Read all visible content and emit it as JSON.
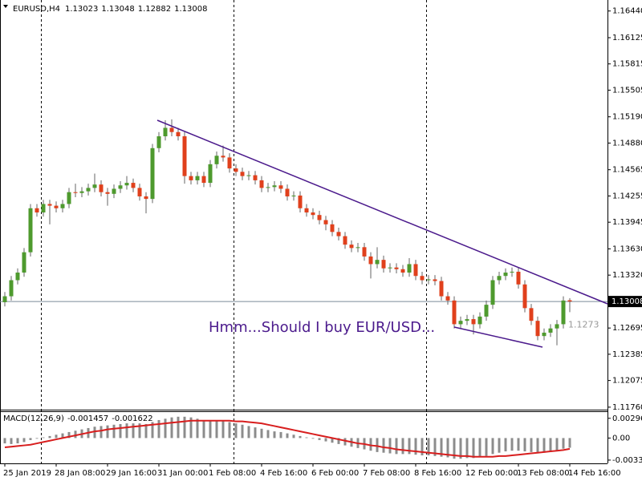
{
  "chart_data": {
    "type": "candlestick",
    "symbol": "EURUSD,H4",
    "header_ohlc": [
      1.13023,
      1.13048,
      1.12882,
      1.13008
    ],
    "annotation": "Hmm...Should I buy EUR/USD...",
    "price_label": 1.1273,
    "up_color": "#4e9a2e",
    "down_color": "#e0401c",
    "wick_color": "#666666",
    "open": [
      1.13,
      1.1307,
      1.1326,
      1.1335,
      1.1359,
      1.1411,
      1.1406,
      1.1416,
      1.1414,
      1.1411,
      1.1416,
      1.143,
      1.1429,
      1.1431,
      1.1435,
      1.1439,
      1.143,
      1.1428,
      1.1434,
      1.1438,
      1.1441,
      1.1435,
      1.1425,
      1.1422,
      1.1482,
      1.1496,
      1.1506,
      1.1501,
      1.1496,
      1.1449,
      1.1444,
      1.1449,
      1.1441,
      1.1463,
      1.1473,
      1.1471,
      1.1458,
      1.1454,
      1.1449,
      1.145,
      1.1444,
      1.1435,
      1.1436,
      1.1438,
      1.1434,
      1.1425,
      1.1426,
      1.1411,
      1.1406,
      1.1403,
      1.1397,
      1.1392,
      1.1383,
      1.1378,
      1.1368,
      1.1364,
      1.1365,
      1.1354,
      1.1345,
      1.135,
      1.134,
      1.1341,
      1.1339,
      1.1335,
      1.1345,
      1.1331,
      1.1326,
      1.1327,
      1.1325,
      1.1307,
      1.1302,
      1.1274,
      1.1278,
      1.128,
      1.1274,
      1.1283,
      1.1297,
      1.1326,
      1.1331,
      1.1335,
      1.1336,
      1.1321,
      1.1293,
      1.1278,
      1.126,
      1.1264,
      1.1269,
      1.1274,
      1.13023
    ],
    "high": [
      1.1312,
      1.1331,
      1.134,
      1.1364,
      1.1416,
      1.1416,
      1.1421,
      1.1421,
      1.1419,
      1.1421,
      1.1435,
      1.144,
      1.1436,
      1.144,
      1.1452,
      1.1444,
      1.1435,
      1.1439,
      1.1443,
      1.1449,
      1.1446,
      1.144,
      1.143,
      1.1487,
      1.1501,
      1.1515,
      1.1516,
      1.1506,
      1.1501,
      1.1454,
      1.1454,
      1.1454,
      1.1468,
      1.1478,
      1.1485,
      1.1476,
      1.1463,
      1.1459,
      1.1455,
      1.1455,
      1.1449,
      1.1441,
      1.1443,
      1.1443,
      1.1439,
      1.1431,
      1.1431,
      1.1416,
      1.1411,
      1.1408,
      1.1402,
      1.1397,
      1.1388,
      1.1383,
      1.1373,
      1.137,
      1.137,
      1.1359,
      1.1365,
      1.1355,
      1.1346,
      1.1346,
      1.1344,
      1.1352,
      1.135,
      1.1336,
      1.1332,
      1.1332,
      1.133,
      1.1312,
      1.1307,
      1.1283,
      1.1285,
      1.1285,
      1.1288,
      1.1302,
      1.1331,
      1.1336,
      1.134,
      1.1341,
      1.1341,
      1.1326,
      1.1298,
      1.1283,
      1.1269,
      1.1274,
      1.1279,
      1.1307,
      1.13048
    ],
    "low": [
      1.1295,
      1.1302,
      1.1321,
      1.133,
      1.1354,
      1.1401,
      1.1401,
      1.1392,
      1.1406,
      1.1406,
      1.1411,
      1.1424,
      1.1424,
      1.1426,
      1.143,
      1.1425,
      1.1414,
      1.1423,
      1.1429,
      1.1433,
      1.143,
      1.142,
      1.1405,
      1.1417,
      1.1477,
      1.1491,
      1.1496,
      1.1491,
      1.144,
      1.1439,
      1.1439,
      1.1436,
      1.1436,
      1.1458,
      1.1466,
      1.1453,
      1.1449,
      1.1444,
      1.1444,
      1.1439,
      1.143,
      1.143,
      1.1431,
      1.1429,
      1.142,
      1.142,
      1.1406,
      1.1401,
      1.1398,
      1.1392,
      1.1385,
      1.1378,
      1.1373,
      1.1363,
      1.1359,
      1.1359,
      1.1349,
      1.1328,
      1.134,
      1.1335,
      1.1335,
      1.1334,
      1.133,
      1.133,
      1.1326,
      1.1321,
      1.1321,
      1.132,
      1.1302,
      1.1297,
      1.1269,
      1.1269,
      1.1273,
      1.1262,
      1.1269,
      1.1278,
      1.1292,
      1.1321,
      1.1326,
      1.133,
      1.1316,
      1.1288,
      1.1273,
      1.1255,
      1.1255,
      1.1259,
      1.1249,
      1.1269,
      1.12882
    ],
    "close": [
      1.1307,
      1.1326,
      1.1335,
      1.1359,
      1.1411,
      1.1406,
      1.1416,
      1.1414,
      1.1411,
      1.1416,
      1.143,
      1.1429,
      1.1431,
      1.1435,
      1.1439,
      1.143,
      1.1428,
      1.1434,
      1.1438,
      1.1441,
      1.1435,
      1.1425,
      1.1422,
      1.1482,
      1.1496,
      1.1506,
      1.1501,
      1.1496,
      1.1449,
      1.1444,
      1.1449,
      1.1441,
      1.1463,
      1.1473,
      1.1471,
      1.1458,
      1.1454,
      1.1449,
      1.145,
      1.1444,
      1.1435,
      1.1436,
      1.1438,
      1.1434,
      1.1425,
      1.1426,
      1.1411,
      1.1406,
      1.1403,
      1.1397,
      1.1392,
      1.1383,
      1.1378,
      1.1368,
      1.1364,
      1.1365,
      1.1354,
      1.1345,
      1.135,
      1.134,
      1.1341,
      1.1339,
      1.1335,
      1.1345,
      1.1331,
      1.1326,
      1.1327,
      1.1325,
      1.1307,
      1.1302,
      1.1274,
      1.1278,
      1.128,
      1.1274,
      1.1283,
      1.1297,
      1.1326,
      1.1331,
      1.1335,
      1.1336,
      1.1321,
      1.1293,
      1.1278,
      1.126,
      1.1264,
      1.1269,
      1.1274,
      1.1302,
      1.13008
    ],
    "ylim": [
      1.1174,
      1.1657
    ],
    "yticks": [
      {
        "value": 1.1644,
        "label": "1.16440"
      },
      1.16125,
      1.15815,
      1.15505,
      {
        "value": 1.1519,
        "label": "1.15190"
      },
      {
        "value": 1.1488,
        "label": "1.14880"
      },
      1.14565,
      1.14255,
      1.13945,
      {
        "value": 1.1363,
        "label": "1.13630"
      },
      {
        "value": 1.1332,
        "label": "1.13320"
      },
      1.12695,
      1.12385,
      1.12075,
      {
        "value": 1.1176,
        "label": "1.11760"
      }
    ],
    "xticks": [
      {
        "value": 0,
        "label": "25 Jan 2019"
      },
      {
        "value": 8,
        "label": "28 Jan 08:00"
      },
      {
        "value": 16,
        "label": "29 Jan 16:00"
      },
      {
        "value": 24,
        "label": "31 Jan 00:00"
      },
      {
        "value": 32,
        "label": "1 Feb 08:00"
      },
      {
        "value": 40,
        "label": "4 Feb 16:00"
      },
      {
        "value": 48,
        "label": "6 Feb 00:00"
      },
      {
        "value": 56,
        "label": "7 Feb 08:00"
      },
      {
        "value": 64,
        "label": "8 Feb 16:00"
      },
      {
        "value": 72,
        "label": "12 Feb 00:00"
      },
      {
        "value": 80,
        "label": "13 Feb 08:00"
      },
      {
        "value": 88,
        "label": "14 Feb 16:00"
      }
    ],
    "indicator": {
      "type": "macd",
      "title": "MACD(12,26,9)",
      "printed_values": [
        -0.001457,
        -0.001622
      ],
      "hist_color": "#8c8c8c",
      "signal_color": "#d81e1e",
      "ylim": [
        -0.0038,
        0.0039
      ],
      "yticks": [
        0.002964,
        {
          "value": 0,
          "label": "0.00"
        },
        -0.00331
      ],
      "histogram": [
        -0.0008,
        -0.0009,
        -0.0008,
        -0.0006,
        -0.0003,
        -0.0001,
        0.0001,
        0.0003,
        0.0005,
        0.0007,
        0.0009,
        0.0011,
        0.0013,
        0.0015,
        0.0017,
        0.0018,
        0.0019,
        0.002,
        0.0021,
        0.0022,
        0.0022,
        0.0022,
        0.0021,
        0.0024,
        0.0027,
        0.0029,
        0.0031,
        0.0032,
        0.0032,
        0.0031,
        0.0029,
        0.0027,
        0.0027,
        0.0027,
        0.0026,
        0.0024,
        0.0022,
        0.002,
        0.0018,
        0.0016,
        0.0014,
        0.0012,
        0.001,
        0.0009,
        0.0007,
        0.0005,
        0.0003,
        0.0001,
        -0.0001,
        -0.0003,
        -0.0005,
        -0.0007,
        -0.0009,
        -0.0011,
        -0.0013,
        -0.0015,
        -0.0017,
        -0.0019,
        -0.0021,
        -0.0022,
        -0.0023,
        -0.0024,
        -0.0024,
        -0.0024,
        -0.0025,
        -0.0026,
        -0.0026,
        -0.0027,
        -0.0028,
        -0.0029,
        -0.0031,
        -0.0031,
        -0.003,
        -0.003,
        -0.0029,
        -0.0027,
        -0.0024,
        -0.0022,
        -0.002,
        -0.0019,
        -0.0019,
        -0.002,
        -0.0021,
        -0.0022,
        -0.0022,
        -0.0021,
        -0.0019,
        -0.0016,
        -0.001457
      ],
      "signal": [
        -0.0014,
        -0.0013,
        -0.0012,
        -0.0011,
        -0.001,
        -0.0008,
        -0.0006,
        -0.0004,
        -0.0002,
        0,
        0.0002,
        0.0004,
        0.0006,
        0.0008,
        0.001,
        0.0011,
        0.0013,
        0.0014,
        0.0015,
        0.0016,
        0.0017,
        0.0018,
        0.0019,
        0.002,
        0.0021,
        0.0022,
        0.0023,
        0.0024,
        0.0025,
        0.0026,
        0.0026,
        0.0026,
        0.0026,
        0.0026,
        0.0026,
        0.0026,
        0.0025,
        0.0025,
        0.0024,
        0.0023,
        0.0022,
        0.002,
        0.0018,
        0.0016,
        0.0014,
        0.0012,
        0.001,
        0.0008,
        0.0006,
        0.0004,
        0.0002,
        0,
        -0.0002,
        -0.0004,
        -0.0006,
        -0.0008,
        -0.0009,
        -0.0011,
        -0.0012,
        -0.0014,
        -0.0015,
        -0.0017,
        -0.0018,
        -0.0019,
        -0.002,
        -0.0021,
        -0.0022,
        -0.0023,
        -0.0024,
        -0.0025,
        -0.0026,
        -0.0027,
        -0.0027,
        -0.0028,
        -0.0028,
        -0.0028,
        -0.0028,
        -0.0027,
        -0.0027,
        -0.0026,
        -0.0025,
        -0.0024,
        -0.0023,
        -0.0022,
        -0.0021,
        -0.002,
        -0.0019,
        -0.0018,
        -0.001622
      ]
    }
  }
}
